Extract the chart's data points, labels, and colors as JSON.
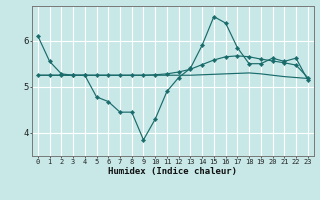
{
  "xlabel": "Humidex (Indice chaleur)",
  "background_color": "#c8e8e8",
  "grid_color_major": "#ffffff",
  "grid_color_minor": "#ddeeff",
  "line_color": "#1a6b6b",
  "x_values": [
    0,
    1,
    2,
    3,
    4,
    5,
    6,
    7,
    8,
    9,
    10,
    11,
    12,
    13,
    14,
    15,
    16,
    17,
    18,
    19,
    20,
    21,
    22,
    23
  ],
  "line_main": [
    6.1,
    5.55,
    5.28,
    5.25,
    5.25,
    4.78,
    4.68,
    4.45,
    4.45,
    3.85,
    4.3,
    4.9,
    5.2,
    5.4,
    5.9,
    6.52,
    6.38,
    5.85,
    5.5,
    5.5,
    5.62,
    5.55,
    5.62,
    5.15
  ],
  "line_smooth": [
    5.25,
    5.25,
    5.25,
    5.25,
    5.25,
    5.25,
    5.25,
    5.25,
    5.25,
    5.25,
    5.26,
    5.28,
    5.32,
    5.38,
    5.48,
    5.58,
    5.65,
    5.67,
    5.65,
    5.6,
    5.56,
    5.52,
    5.47,
    5.2
  ],
  "line_flat": [
    5.25,
    5.25,
    5.25,
    5.25,
    5.25,
    5.25,
    5.25,
    5.25,
    5.25,
    5.25,
    5.25,
    5.25,
    5.25,
    5.25,
    5.26,
    5.27,
    5.28,
    5.29,
    5.3,
    5.28,
    5.25,
    5.22,
    5.2,
    5.18
  ],
  "ylim": [
    3.5,
    6.75
  ],
  "yticks": [
    4,
    5,
    6
  ],
  "xlim": [
    -0.5,
    23.5
  ],
  "figsize": [
    3.2,
    2.0
  ],
  "dpi": 100
}
